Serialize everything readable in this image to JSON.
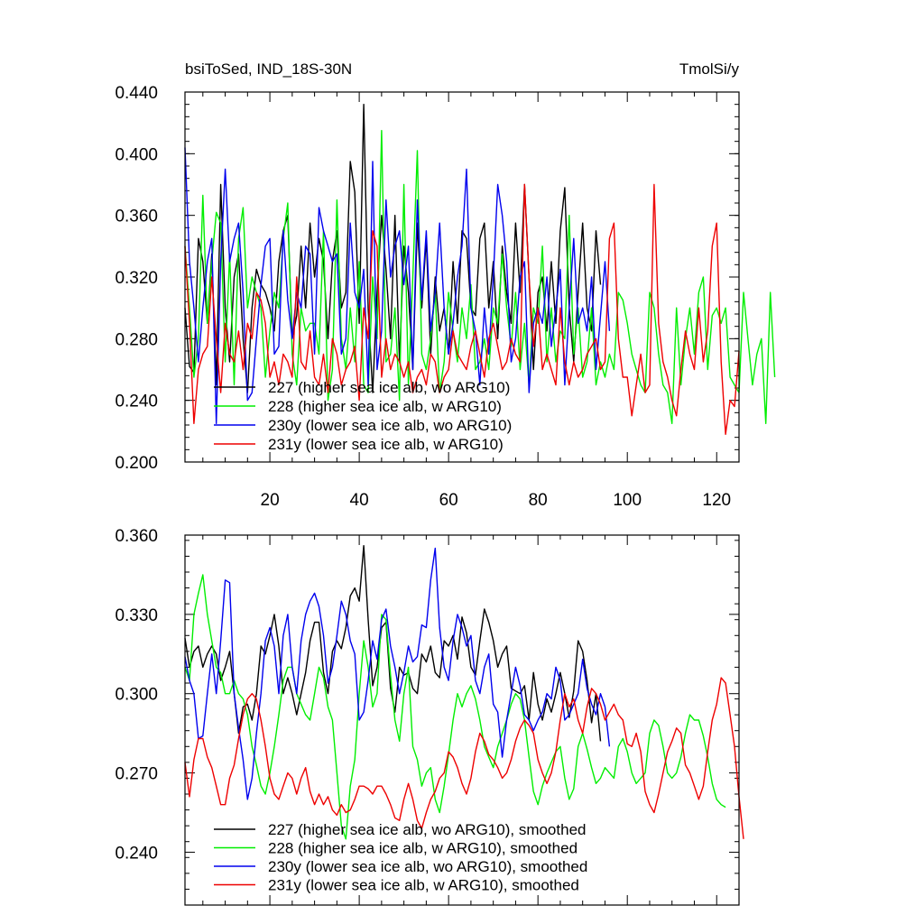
{
  "chart_data": [
    {
      "type": "line",
      "title": "bsiToSed, IND_18S-30N",
      "units": "TmolSi/y",
      "ylim": [
        0.2,
        0.44
      ],
      "xlim": [
        1,
        125
      ],
      "yticks": [
        "0.200",
        "0.240",
        "0.280",
        "0.320",
        "0.360",
        "0.400",
        "0.440"
      ],
      "xticks": [
        "20",
        "40",
        "60",
        "80",
        "100",
        "120"
      ],
      "series": [
        {
          "name": "227 (higher sea ice alb, wo ARG10)",
          "color": "#000000",
          "x_start": 1,
          "values": [
            0.3,
            0.262,
            0.258,
            0.345,
            0.33,
            0.29,
            0.335,
            0.25,
            0.38,
            0.3,
            0.265,
            0.32,
            0.335,
            0.28,
            0.245,
            0.3,
            0.325,
            0.315,
            0.31,
            0.3,
            0.285,
            0.33,
            0.35,
            0.36,
            0.28,
            0.295,
            0.34,
            0.3,
            0.355,
            0.32,
            0.345,
            0.33,
            0.28,
            0.33,
            0.35,
            0.3,
            0.31,
            0.395,
            0.375,
            0.29,
            0.432,
            0.3,
            0.245,
            0.31,
            0.36,
            0.325,
            0.28,
            0.36,
            0.265,
            0.34,
            0.31,
            0.26,
            0.355,
            0.3,
            0.345,
            0.27,
            0.32,
            0.285,
            0.3,
            0.27,
            0.33,
            0.29,
            0.35,
            0.345,
            0.3,
            0.295,
            0.345,
            0.355,
            0.3,
            0.33,
            0.28,
            0.34,
            0.31,
            0.29,
            0.355,
            0.31,
            0.38,
            0.32,
            0.26,
            0.31,
            0.32,
            0.285,
            0.33,
            0.29,
            0.35,
            0.378,
            0.3,
            0.265,
            0.31,
            0.355,
            0.3,
            0.285,
            0.35,
            0.315
          ]
        },
        {
          "name": "228 (higher sea ice alb, w ARG10)",
          "color": "#00ee00",
          "x_start": 1,
          "values": [
            0.34,
            0.3,
            0.255,
            0.28,
            0.373,
            0.29,
            0.33,
            0.362,
            0.355,
            0.265,
            0.335,
            0.25,
            0.345,
            0.365,
            0.3,
            0.32,
            0.31,
            0.3,
            0.255,
            0.285,
            0.31,
            0.3,
            0.345,
            0.368,
            0.27,
            0.25,
            0.3,
            0.285,
            0.29,
            0.29,
            0.27,
            0.35,
            0.24,
            0.26,
            0.37,
            0.28,
            0.26,
            0.3,
            0.265,
            0.33,
            0.25,
            0.245,
            0.32,
            0.28,
            0.415,
            0.265,
            0.27,
            0.3,
            0.24,
            0.38,
            0.25,
            0.32,
            0.402,
            0.27,
            0.26,
            0.28,
            0.31,
            0.245,
            0.265,
            0.31,
            0.285,
            0.265,
            0.3,
            0.28,
            0.315,
            0.26,
            0.265,
            0.28,
            0.26,
            0.3,
            0.29,
            0.335,
            0.3,
            0.275,
            0.31,
            0.26,
            0.29,
            0.25,
            0.3,
            0.29,
            0.34,
            0.265,
            0.3,
            0.265,
            0.285,
            0.28,
            0.36,
            0.27,
            0.3,
            0.255,
            0.265,
            0.3,
            0.25,
            0.265,
            0.255,
            0.27,
            0.26,
            0.31,
            0.305,
            0.29,
            0.27,
            0.26,
            0.25,
            0.245,
            0.31,
            0.3,
            0.27,
            0.25,
            0.245,
            0.225,
            0.3,
            0.25,
            0.28,
            0.3,
            0.27,
            0.31,
            0.32,
            0.26,
            0.295,
            0.3,
            0.29,
            0.3,
            0.255,
            0.25,
            0.245,
            0.31,
            0.28,
            0.25,
            0.27,
            0.28,
            0.225,
            0.31,
            0.255
          ]
        },
        {
          "name": "230y (lower sea ice alb, wo ARG10)",
          "color": "#0000ee",
          "x_start": 1,
          "values": [
            0.404,
            0.33,
            0.3,
            0.265,
            0.3,
            0.33,
            0.345,
            0.225,
            0.33,
            0.39,
            0.33,
            0.345,
            0.355,
            0.31,
            0.24,
            0.245,
            0.28,
            0.315,
            0.34,
            0.345,
            0.27,
            0.275,
            0.35,
            0.305,
            0.28,
            0.31,
            0.3,
            0.34,
            0.335,
            0.27,
            0.365,
            0.35,
            0.34,
            0.33,
            0.335,
            0.27,
            0.28,
            0.355,
            0.31,
            0.3,
            0.325,
            0.25,
            0.395,
            0.26,
            0.285,
            0.37,
            0.32,
            0.34,
            0.35,
            0.315,
            0.34,
            0.26,
            0.37,
            0.305,
            0.35,
            0.285,
            0.31,
            0.355,
            0.3,
            0.27,
            0.29,
            0.32,
            0.34,
            0.39,
            0.3,
            0.285,
            0.25,
            0.3,
            0.27,
            0.32,
            0.38,
            0.36,
            0.33,
            0.265,
            0.28,
            0.32,
            0.33,
            0.245,
            0.29,
            0.3,
            0.29,
            0.32,
            0.275,
            0.3,
            0.325,
            0.25,
            0.3,
            0.345,
            0.29,
            0.3,
            0.285,
            0.32,
            0.26,
            0.295,
            0.33,
            0.285
          ]
        },
        {
          "name": "231y (lower sea ice alb, w ARG10)",
          "color": "#ee0000",
          "x_start": 1,
          "values": [
            0.34,
            0.29,
            0.225,
            0.26,
            0.27,
            0.275,
            0.32,
            0.28,
            0.245,
            0.29,
            0.27,
            0.265,
            0.285,
            0.26,
            0.29,
            0.28,
            0.31,
            0.305,
            0.29,
            0.255,
            0.265,
            0.25,
            0.27,
            0.265,
            0.255,
            0.32,
            0.265,
            0.26,
            0.285,
            0.255,
            0.25,
            0.27,
            0.245,
            0.28,
            0.27,
            0.25,
            0.26,
            0.265,
            0.275,
            0.24,
            0.3,
            0.28,
            0.35,
            0.34,
            0.255,
            0.28,
            0.26,
            0.27,
            0.265,
            0.255,
            0.265,
            0.245,
            0.255,
            0.26,
            0.25,
            0.27,
            0.265,
            0.245,
            0.255,
            0.26,
            0.285,
            0.27,
            0.265,
            0.26,
            0.275,
            0.285,
            0.27,
            0.255,
            0.28,
            0.29,
            0.275,
            0.26,
            0.265,
            0.28,
            0.27,
            0.265,
            0.38,
            0.32,
            0.275,
            0.3,
            0.26,
            0.27,
            0.26,
            0.25,
            0.3,
            0.265,
            0.25,
            0.265,
            0.255,
            0.26,
            0.27,
            0.275,
            0.28,
            0.26,
            0.265,
            0.345,
            0.355,
            0.28,
            0.255,
            0.255,
            0.23,
            0.25,
            0.27,
            0.245,
            0.25,
            0.38,
            0.29,
            0.265,
            0.255,
            0.24,
            0.23,
            0.26,
            0.285,
            0.27,
            0.26,
            0.3,
            0.265,
            0.285,
            0.34,
            0.355,
            0.265,
            0.218,
            0.24,
            0.236,
            0.272
          ]
        }
      ]
    },
    {
      "type": "line",
      "title": "",
      "ylim": [
        0.22,
        0.36
      ],
      "xlim": [
        1,
        125
      ],
      "yticks": [
        "0.240",
        "0.270",
        "0.300",
        "0.330",
        "0.360"
      ],
      "series": [
        {
          "name": "227 (higher sea ice alb, wo ARG10), smoothed",
          "color": "#000000",
          "x_start": 1,
          "values": [
            0.321,
            0.31,
            0.316,
            0.318,
            0.31,
            0.315,
            0.318,
            0.315,
            0.305,
            0.31,
            0.316,
            0.3,
            0.285,
            0.295,
            0.296,
            0.29,
            0.3,
            0.318,
            0.315,
            0.322,
            0.33,
            0.318,
            0.3,
            0.306,
            0.3,
            0.292,
            0.3,
            0.308,
            0.32,
            0.327,
            0.327,
            0.308,
            0.3,
            0.316,
            0.32,
            0.317,
            0.325,
            0.337,
            0.34,
            0.335,
            0.356,
            0.328,
            0.303,
            0.31,
            0.325,
            0.327,
            0.302,
            0.293,
            0.31,
            0.307,
            0.308,
            0.302,
            0.3,
            0.315,
            0.312,
            0.318,
            0.308,
            0.306,
            0.32,
            0.318,
            0.322,
            0.313,
            0.329,
            0.323,
            0.31,
            0.307,
            0.32,
            0.332,
            0.327,
            0.32,
            0.31,
            0.315,
            0.318,
            0.302,
            0.301,
            0.3,
            0.303,
            0.29,
            0.308,
            0.296,
            0.29,
            0.298,
            0.293,
            0.3,
            0.308,
            0.3,
            0.291,
            0.301,
            0.32,
            0.316,
            0.305,
            0.289,
            0.3,
            0.282
          ]
        },
        {
          "name": "228 (higher sea ice alb, w ARG10), smoothed",
          "color": "#00ee00",
          "x_start": 1,
          "values": [
            0.31,
            0.305,
            0.33,
            0.338,
            0.345,
            0.33,
            0.32,
            0.31,
            0.308,
            0.3,
            0.3,
            0.305,
            0.3,
            0.298,
            0.292,
            0.28,
            0.273,
            0.265,
            0.262,
            0.27,
            0.28,
            0.292,
            0.305,
            0.31,
            0.31,
            0.3,
            0.296,
            0.292,
            0.29,
            0.3,
            0.31,
            0.306,
            0.295,
            0.29,
            0.27,
            0.25,
            0.245,
            0.265,
            0.275,
            0.3,
            0.32,
            0.31,
            0.295,
            0.3,
            0.33,
            0.328,
            0.307,
            0.29,
            0.282,
            0.3,
            0.31,
            0.28,
            0.275,
            0.265,
            0.27,
            0.272,
            0.26,
            0.255,
            0.265,
            0.277,
            0.29,
            0.3,
            0.295,
            0.3,
            0.303,
            0.298,
            0.29,
            0.28,
            0.276,
            0.272,
            0.28,
            0.285,
            0.29,
            0.296,
            0.3,
            0.298,
            0.29,
            0.276,
            0.263,
            0.258,
            0.265,
            0.27,
            0.274,
            0.278,
            0.28,
            0.268,
            0.26,
            0.264,
            0.28,
            0.285,
            0.279,
            0.272,
            0.266,
            0.268,
            0.272,
            0.27,
            0.268,
            0.28,
            0.283,
            0.278,
            0.27,
            0.266,
            0.268,
            0.27,
            0.285,
            0.29,
            0.288,
            0.28,
            0.27,
            0.268,
            0.27,
            0.276,
            0.285,
            0.292,
            0.29,
            0.29,
            0.284,
            0.276,
            0.266,
            0.26,
            0.258,
            0.257
          ]
        },
        {
          "name": "230y (lower sea ice alb, wo ARG10), smoothed",
          "color": "#0000ee",
          "x_start": 1,
          "values": [
            0.314,
            0.305,
            0.3,
            0.283,
            0.284,
            0.3,
            0.315,
            0.3,
            0.32,
            0.343,
            0.342,
            0.3,
            0.287,
            0.275,
            0.26,
            0.268,
            0.285,
            0.3,
            0.32,
            0.325,
            0.318,
            0.3,
            0.322,
            0.33,
            0.31,
            0.3,
            0.32,
            0.33,
            0.335,
            0.338,
            0.333,
            0.322,
            0.304,
            0.31,
            0.322,
            0.335,
            0.33,
            0.32,
            0.315,
            0.29,
            0.293,
            0.305,
            0.32,
            0.313,
            0.328,
            0.332,
            0.318,
            0.31,
            0.3,
            0.308,
            0.318,
            0.312,
            0.314,
            0.326,
            0.325,
            0.343,
            0.355,
            0.325,
            0.31,
            0.305,
            0.32,
            0.33,
            0.325,
            0.318,
            0.322,
            0.305,
            0.3,
            0.31,
            0.315,
            0.296,
            0.293,
            0.276,
            0.29,
            0.3,
            0.31,
            0.303,
            0.292,
            0.29,
            0.286,
            0.29,
            0.293,
            0.3,
            0.298,
            0.31,
            0.305,
            0.29,
            0.292,
            0.296,
            0.3,
            0.313,
            0.302,
            0.296,
            0.292,
            0.3,
            0.295,
            0.28
          ]
        },
        {
          "name": "231y (lower sea ice alb, w ARG10), smoothed",
          "color": "#ee0000",
          "x_start": 1,
          "values": [
            0.274,
            0.261,
            0.275,
            0.283,
            0.283,
            0.276,
            0.272,
            0.265,
            0.258,
            0.258,
            0.268,
            0.273,
            0.283,
            0.292,
            0.298,
            0.3,
            0.298,
            0.29,
            0.28,
            0.268,
            0.262,
            0.26,
            0.265,
            0.27,
            0.268,
            0.262,
            0.268,
            0.272,
            0.263,
            0.258,
            0.262,
            0.258,
            0.261,
            0.256,
            0.254,
            0.258,
            0.255,
            0.256,
            0.26,
            0.265,
            0.265,
            0.264,
            0.262,
            0.265,
            0.265,
            0.262,
            0.258,
            0.253,
            0.252,
            0.26,
            0.266,
            0.26,
            0.252,
            0.249,
            0.255,
            0.26,
            0.263,
            0.268,
            0.27,
            0.278,
            0.276,
            0.272,
            0.266,
            0.262,
            0.268,
            0.278,
            0.285,
            0.282,
            0.277,
            0.275,
            0.272,
            0.268,
            0.27,
            0.275,
            0.282,
            0.287,
            0.29,
            0.288,
            0.285,
            0.275,
            0.27,
            0.266,
            0.27,
            0.278,
            0.29,
            0.3,
            0.295,
            0.298,
            0.29,
            0.285,
            0.295,
            0.302,
            0.3,
            0.296,
            0.29,
            0.293,
            0.296,
            0.292,
            0.29,
            0.281,
            0.28,
            0.285,
            0.278,
            0.263,
            0.258,
            0.255,
            0.262,
            0.27,
            0.278,
            0.282,
            0.287,
            0.285,
            0.273,
            0.27,
            0.265,
            0.26,
            0.265,
            0.278,
            0.29,
            0.296,
            0.306,
            0.304,
            0.292,
            0.28,
            0.261,
            0.245
          ]
        }
      ]
    }
  ]
}
